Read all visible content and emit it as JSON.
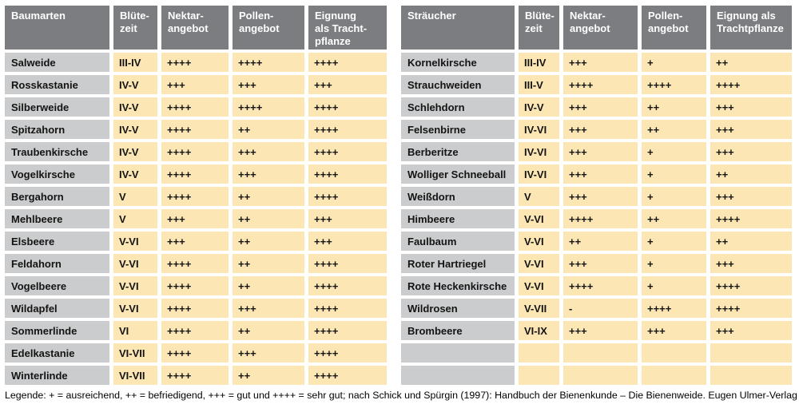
{
  "legend": "Legende: + = ausreichend, ++ = befriedigend, +++ = gut und ++++ = sehr gut; nach Schick und Spürgin (1997): Handbuch der Bienenkunde – Die Bienenweide. Eugen Ulmer-Verlag",
  "colors": {
    "header_bg": "#7b7d80",
    "header_text": "#ffffff",
    "name_cell_bg": "#cbcccd",
    "value_cell_bg": "#fbe6b4",
    "cell_text": "#141414",
    "page_bg": "#ffffff"
  },
  "tables": [
    {
      "id": "trees",
      "headers": [
        "Baumarten",
        "Blüte-\nzeit",
        "Nektar-\nangebot",
        "Pollen-\nangebot",
        "Eignung\nals Tracht-\npflanze"
      ],
      "rows": [
        [
          "Salweide",
          "III-IV",
          "++++",
          "++++",
          "++++"
        ],
        [
          "Rosskastanie",
          "IV-V",
          "+++",
          "+++",
          "+++"
        ],
        [
          "Silberweide",
          "IV-V",
          "++++",
          "++++",
          "++++"
        ],
        [
          "Spitzahorn",
          "IV-V",
          "++++",
          "++",
          "++++"
        ],
        [
          "Traubenkirsche",
          "IV-V",
          "++++",
          "+++",
          "++++"
        ],
        [
          "Vogelkirsche",
          "IV-V",
          "++++",
          "+++",
          "++++"
        ],
        [
          "Bergahorn",
          "V",
          "++++",
          "++",
          "++++"
        ],
        [
          "Mehlbeere",
          "V",
          "+++",
          "++",
          "+++"
        ],
        [
          "Elsbeere",
          "V-VI",
          "+++",
          "++",
          "+++"
        ],
        [
          "Feldahorn",
          "V-VI",
          "++++",
          "++",
          "++++"
        ],
        [
          "Vogelbeere",
          "V-VI",
          "++++",
          "++",
          "++++"
        ],
        [
          "Wildapfel",
          "V-VI",
          "++++",
          "+++",
          "++++"
        ],
        [
          "Sommerlinde",
          "VI",
          "++++",
          "++",
          "++++"
        ],
        [
          "Edelkastanie",
          "VI-VII",
          "++++",
          "+++",
          "++++"
        ],
        [
          "Winterlinde",
          "VI-VII",
          "++++",
          "++",
          "++++"
        ]
      ]
    },
    {
      "id": "shrubs",
      "headers": [
        "Sträucher",
        "Blüte-\nzeit",
        "Nektar-\nangebot",
        "Pollen-\nangebot",
        "Eignung als\nTrachtpflanze"
      ],
      "rows": [
        [
          "Kornelkirsche",
          "III-IV",
          "+++",
          "+",
          "++"
        ],
        [
          "Strauchweiden",
          "III-V",
          "++++",
          "++++",
          "++++"
        ],
        [
          "Schlehdorn",
          "IV-V",
          "+++",
          "++",
          "+++"
        ],
        [
          "Felsenbirne",
          "IV-VI",
          "+++",
          "++",
          "+++"
        ],
        [
          "Berberitze",
          "IV-VI",
          "+++",
          "+",
          "+++"
        ],
        [
          "Wolliger Schneeball",
          "IV-VI",
          "+++",
          "+",
          "++"
        ],
        [
          "Weißdorn",
          "V",
          "+++",
          "+",
          "+++"
        ],
        [
          "Himbeere",
          "V-VI",
          "++++",
          "++",
          "++++"
        ],
        [
          "Faulbaum",
          "V-VI",
          "++",
          "+",
          "++"
        ],
        [
          "Roter Hartriegel",
          "V-VI",
          "+++",
          "+",
          "+++"
        ],
        [
          "Rote Heckenkirsche",
          "V-VI",
          "++++",
          "+",
          "++++"
        ],
        [
          "Wildrosen",
          "V-VII",
          "-",
          "++++",
          "++++"
        ],
        [
          "Brombeere",
          "VI-IX",
          "+++",
          "+++",
          "+++"
        ],
        [
          "",
          "",
          "",
          "",
          ""
        ],
        [
          "",
          "",
          "",
          "",
          ""
        ]
      ]
    }
  ]
}
